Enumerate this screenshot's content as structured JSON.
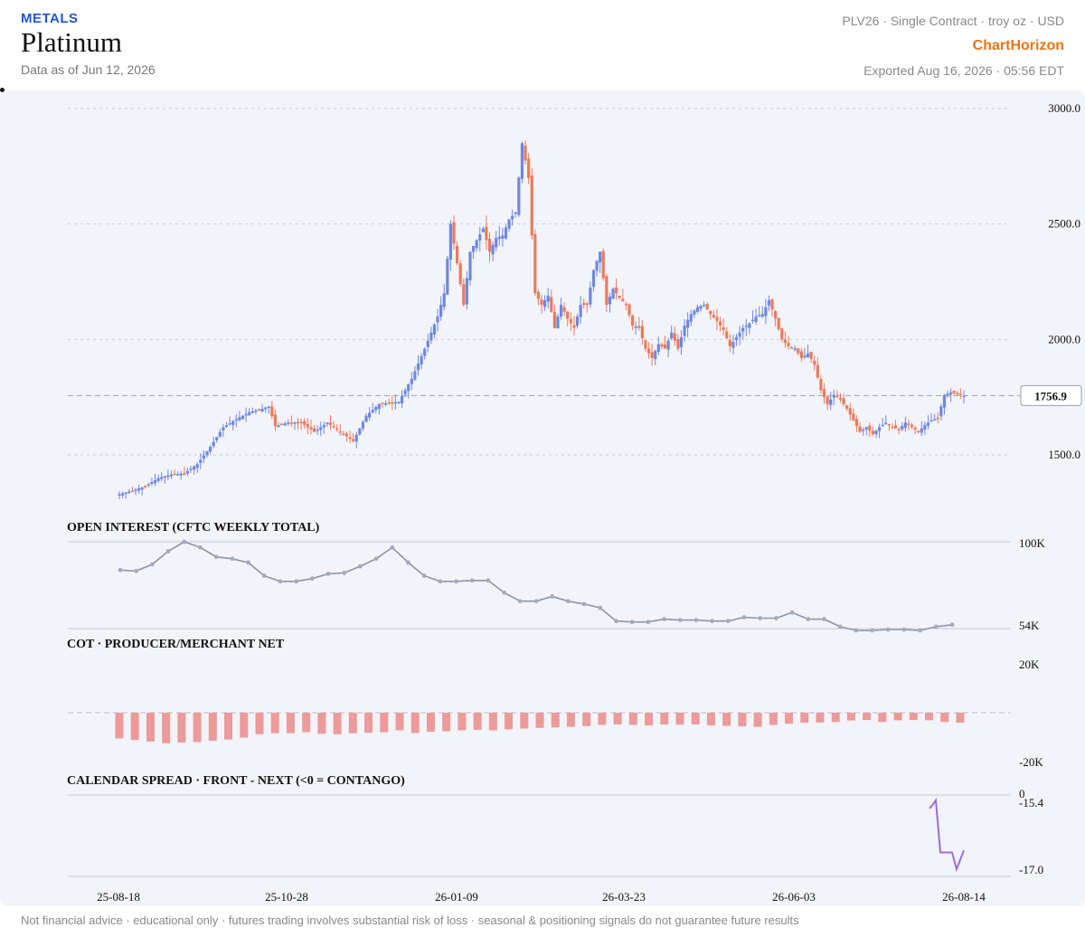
{
  "header": {
    "category": "METALS",
    "title": "Platinum",
    "data_as_of": "Data as of Jun 12, 2026",
    "contract_info": "PLV26 · Single Contract · troy oz · USD",
    "brand": "ChartHorizon",
    "exported": "Exported Aug 16, 2026 · 05:56 EDT"
  },
  "footer": {
    "disclaimer": "Not financial advice · educational only · futures trading involves substantial risk of loss · seasonal & positioning signals do not guarantee future results"
  },
  "colors": {
    "up": "#6f88e0",
    "down": "#ec7a5c",
    "oi_line": "#8a94a8",
    "cot_bar": "#ec9a9a",
    "spread_line": "#9b6ddf",
    "panel_bg": "#f2f4f9"
  },
  "chart_data": [
    {
      "type": "candlestick",
      "panel": "price",
      "ylim": [
        1300,
        3000
      ],
      "y_ticks": [
        "3000.0",
        "2500.0",
        "2000.0",
        "1500.0"
      ],
      "last_price": 1756.9,
      "last_price_label": "1756.9",
      "x_tick_labels": [
        "25-08-18",
        "25-10-28",
        "26-01-09",
        "26-03-23",
        "26-06-03",
        "26-08-14"
      ],
      "anchors": [
        [
          0,
          1330
        ],
        [
          4,
          1345
        ],
        [
          8,
          1365
        ],
        [
          12,
          1400
        ],
        [
          16,
          1415
        ],
        [
          20,
          1420
        ],
        [
          24,
          1460
        ],
        [
          28,
          1535
        ],
        [
          32,
          1620
        ],
        [
          36,
          1655
        ],
        [
          40,
          1685
        ],
        [
          44,
          1700
        ],
        [
          46,
          1710
        ],
        [
          48,
          1625
        ],
        [
          52,
          1640
        ],
        [
          56,
          1640
        ],
        [
          60,
          1600
        ],
        [
          64,
          1640
        ],
        [
          68,
          1600
        ],
        [
          72,
          1560
        ],
        [
          76,
          1670
        ],
        [
          80,
          1720
        ],
        [
          86,
          1730
        ],
        [
          90,
          1830
        ],
        [
          94,
          1960
        ],
        [
          98,
          2100
        ],
        [
          100,
          2200
        ],
        [
          102,
          2500
        ],
        [
          104,
          2330
        ],
        [
          106,
          2150
        ],
        [
          108,
          2380
        ],
        [
          110,
          2430
        ],
        [
          112,
          2480
        ],
        [
          114,
          2380
        ],
        [
          116,
          2440
        ],
        [
          118,
          2450
        ],
        [
          120,
          2520
        ],
        [
          122,
          2550
        ],
        [
          124,
          2850
        ],
        [
          126,
          2700
        ],
        [
          128,
          2200
        ],
        [
          130,
          2150
        ],
        [
          132,
          2190
        ],
        [
          134,
          2050
        ],
        [
          136,
          2150
        ],
        [
          138,
          2090
        ],
        [
          140,
          2050
        ],
        [
          142,
          2150
        ],
        [
          144,
          2150
        ],
        [
          146,
          2300
        ],
        [
          148,
          2380
        ],
        [
          150,
          2150
        ],
        [
          152,
          2220
        ],
        [
          154,
          2180
        ],
        [
          156,
          2150
        ],
        [
          158,
          2060
        ],
        [
          160,
          2050
        ],
        [
          162,
          1960
        ],
        [
          164,
          1920
        ],
        [
          166,
          1980
        ],
        [
          168,
          1960
        ],
        [
          170,
          2030
        ],
        [
          172,
          1960
        ],
        [
          174,
          2060
        ],
        [
          176,
          2110
        ],
        [
          178,
          2140
        ],
        [
          180,
          2150
        ],
        [
          182,
          2110
        ],
        [
          184,
          2080
        ],
        [
          186,
          2040
        ],
        [
          188,
          1970
        ],
        [
          190,
          2010
        ],
        [
          192,
          2050
        ],
        [
          194,
          2070
        ],
        [
          196,
          2100
        ],
        [
          198,
          2110
        ],
        [
          200,
          2170
        ],
        [
          202,
          2090
        ],
        [
          204,
          2000
        ],
        [
          206,
          1970
        ],
        [
          208,
          1960
        ],
        [
          210,
          1920
        ],
        [
          212,
          1940
        ],
        [
          214,
          1890
        ],
        [
          216,
          1780
        ],
        [
          218,
          1720
        ],
        [
          220,
          1760
        ],
        [
          222,
          1740
        ],
        [
          224,
          1700
        ],
        [
          226,
          1650
        ],
        [
          228,
          1600
        ],
        [
          230,
          1620
        ],
        [
          232,
          1590
        ],
        [
          234,
          1620
        ],
        [
          236,
          1640
        ],
        [
          238,
          1620
        ],
        [
          240,
          1610
        ],
        [
          242,
          1640
        ],
        [
          244,
          1620
        ],
        [
          246,
          1600
        ],
        [
          248,
          1630
        ],
        [
          250,
          1650
        ],
        [
          252,
          1660
        ],
        [
          254,
          1760
        ],
        [
          256,
          1770
        ],
        [
          258,
          1765
        ],
        [
          260,
          1757
        ]
      ]
    },
    {
      "type": "line",
      "panel": "open_interest",
      "title": "OPEN INTEREST (CFTC WEEKLY TOTAL)",
      "y_ticks": [
        "100K",
        "54K"
      ],
      "ylim": [
        54000,
        100000
      ],
      "values": [
        85000,
        84500,
        88000,
        95000,
        100000,
        97000,
        92000,
        91000,
        89000,
        82000,
        79000,
        79000,
        80500,
        83000,
        83500,
        87000,
        91000,
        97000,
        89000,
        82000,
        79000,
        79000,
        79500,
        79500,
        73000,
        68500,
        68500,
        71000,
        68500,
        67000,
        65000,
        58000,
        57500,
        57500,
        59000,
        58500,
        58500,
        58000,
        58000,
        60000,
        59500,
        59500,
        62500,
        59000,
        59000,
        55000,
        53000,
        53000,
        53500,
        53500,
        53000,
        55000,
        56000
      ]
    },
    {
      "type": "bar",
      "panel": "cot",
      "title": "COT · PRODUCER/MERCHANT NET",
      "y_ticks": [
        "20K",
        "-20K"
      ],
      "ylim": [
        -20000,
        20000
      ],
      "values": [
        -10500,
        -11200,
        -11800,
        -12500,
        -12200,
        -12000,
        -11500,
        -11000,
        -10200,
        -8800,
        -8400,
        -8400,
        -8000,
        -8600,
        -8800,
        -8400,
        -8200,
        -8000,
        -7200,
        -8300,
        -7800,
        -7600,
        -7200,
        -7000,
        -7200,
        -6800,
        -6500,
        -6200,
        -6000,
        -5800,
        -5500,
        -5000,
        -4800,
        -5000,
        -5200,
        -4800,
        -4900,
        -4800,
        -5200,
        -5400,
        -5600,
        -5800,
        -5000,
        -4500,
        -4100,
        -4000,
        -3800,
        -3200,
        -3000,
        -3800,
        -3100,
        -3000,
        -3100,
        -3800,
        -4100
      ]
    },
    {
      "type": "line",
      "panel": "spread",
      "title": "CALENDAR SPREAD · FRONT - NEXT (<0 = CONTANGO)",
      "zero_label": "0",
      "y_ticks": [
        "-15.4",
        "-17.0"
      ],
      "ylim": [
        -17.0,
        -15.4
      ],
      "values": [
        -15.55,
        -15.45,
        -15.35,
        -16.6,
        -16.6,
        -16.6,
        -16.6,
        -16.6,
        -17.0,
        -16.55
      ]
    }
  ]
}
